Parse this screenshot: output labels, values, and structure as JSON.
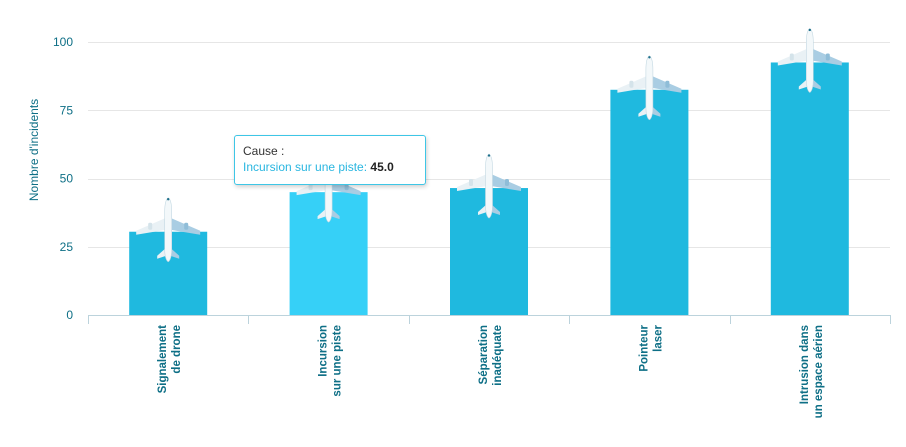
{
  "chart_data": {
    "type": "bar",
    "categories": [
      [
        "Signalement",
        "de drone"
      ],
      [
        "Incursion",
        "sur une piste"
      ],
      [
        "Séparation",
        "inadéquate"
      ],
      [
        "Pointeur",
        "laser"
      ],
      [
        "Intrusion dans",
        "un espace aérien"
      ]
    ],
    "values": [
      30.5,
      45.0,
      46.5,
      82.5,
      92.5
    ],
    "title": "",
    "xlabel": "",
    "ylabel": "Nombre d'incidents",
    "ylim": [
      0,
      100
    ],
    "yticks": [
      0,
      25,
      50,
      75,
      100
    ],
    "grid": true,
    "bar_color": "#1fb9df",
    "highlight_color": "#36d0f7",
    "highlighted_index": 1,
    "marker_icon": "airplane-icon"
  },
  "tooltip": {
    "heading": "Cause :",
    "series_label": "Incursion sur une piste:",
    "value": "45.0"
  }
}
